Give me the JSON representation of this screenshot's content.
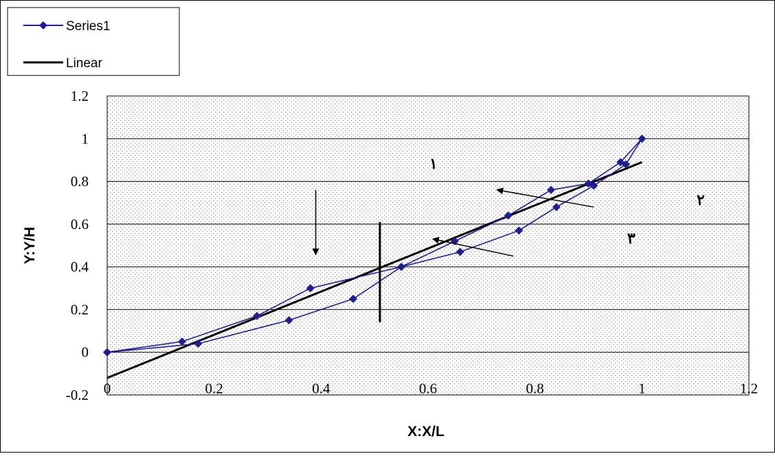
{
  "chart_data": {
    "type": "line",
    "title": "",
    "xlabel": "X:X/L",
    "ylabel": "Y:Y/H",
    "xlim": [
      0,
      1.2
    ],
    "ylim": [
      -0.2,
      1.2
    ],
    "x_ticks": [
      0,
      0.2,
      0.4,
      0.6,
      0.8,
      1,
      1.2
    ],
    "y_ticks": [
      -0.2,
      0,
      0.2,
      0.4,
      0.6,
      0.8,
      1,
      1.2
    ],
    "x_tick_labels": [
      "0",
      "0.2",
      "0.4",
      "0.6",
      "0.8",
      "1",
      "1.2"
    ],
    "y_tick_labels": [
      "-0.2",
      "0",
      "0.2",
      "0.4",
      "0.6",
      "0.8",
      "1",
      "1.2"
    ],
    "grid": "horizontal",
    "plot_background": "dotted-gray",
    "legend_position": "top-left",
    "series": [
      {
        "name": "Series1",
        "color": "#1f1f8f",
        "marker": "diamond",
        "x": [
          0,
          0.14,
          0.28,
          0.38,
          0.55,
          0.65,
          0.75,
          0.83,
          0.9,
          0.96,
          1.0,
          0.97,
          0.91,
          0.84,
          0.77,
          0.66,
          0.55,
          0.46,
          0.34,
          0.17,
          0
        ],
        "y": [
          0,
          0.05,
          0.17,
          0.3,
          0.4,
          0.52,
          0.64,
          0.76,
          0.79,
          0.89,
          1.0,
          0.88,
          0.78,
          0.68,
          0.57,
          0.47,
          0.4,
          0.25,
          0.15,
          0.04,
          0
        ]
      },
      {
        "name": "Linear",
        "color": "#000000",
        "marker": "none",
        "x": [
          0,
          1
        ],
        "y": [
          -0.12,
          0.89
        ]
      }
    ],
    "annotations": [
      {
        "text": "١",
        "x": 0.61,
        "y": 0.86
      },
      {
        "text": "٢",
        "x": 1.11,
        "y": 0.69
      },
      {
        "text": "٣",
        "x": 0.98,
        "y": 0.51
      }
    ],
    "arrows": [
      {
        "from": [
          0.39,
          0.76
        ],
        "to": [
          0.39,
          0.46
        ]
      },
      {
        "from": [
          0.91,
          0.68
        ],
        "to": [
          0.73,
          0.76
        ]
      },
      {
        "from": [
          0.76,
          0.45
        ],
        "to": [
          0.61,
          0.53
        ]
      }
    ],
    "vertical_marker": {
      "x": 0.51,
      "y0": 0.14,
      "y1": 0.61
    }
  }
}
